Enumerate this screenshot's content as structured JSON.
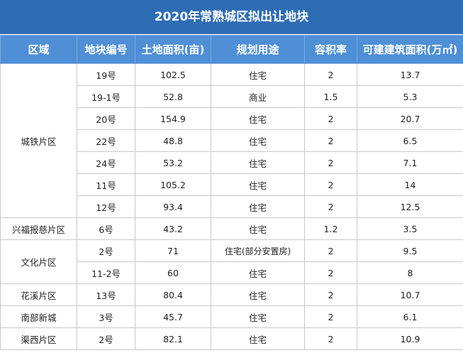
{
  "title": "2020年常熟城区拟出让地块",
  "headers": [
    "区域",
    "地块编号",
    "土地面积(亩)",
    "规划用途",
    "容积率",
    "可建建筑面积(万㎡)"
  ],
  "groups": [
    {
      "district": "城铁片区",
      "rows": [
        {
          "id": "19号",
          "area": "102.5",
          "usage": "住宅",
          "far": "2",
          "gfa": "13.7"
        },
        {
          "id": "19-1号",
          "area": "52.8",
          "usage": "商业",
          "far": "1.5",
          "gfa": "5.3"
        },
        {
          "id": "20号",
          "area": "154.9",
          "usage": "住宅",
          "far": "2",
          "gfa": "20.7"
        },
        {
          "id": "22号",
          "area": "48.8",
          "usage": "住宅",
          "far": "2",
          "gfa": "6.5"
        },
        {
          "id": "24号",
          "area": "53.2",
          "usage": "住宅",
          "far": "2",
          "gfa": "7.1"
        },
        {
          "id": "11号",
          "area": "105.2",
          "usage": "住宅",
          "far": "2",
          "gfa": "14"
        },
        {
          "id": "12号",
          "area": "93.4",
          "usage": "住宅",
          "far": "2",
          "gfa": "12.5"
        }
      ]
    },
    {
      "district": "兴福报慈片区",
      "rows": [
        {
          "id": "6号",
          "area": "43.2",
          "usage": "住宅",
          "far": "1.2",
          "gfa": "3.5"
        }
      ]
    },
    {
      "district": "文化片区",
      "rows": [
        {
          "id": "2号",
          "area": "71",
          "usage": "住宅(部分安置房)",
          "far": "2",
          "gfa": "9.5"
        },
        {
          "id": "11-2号",
          "area": "60",
          "usage": "住宅",
          "far": "2",
          "gfa": "8"
        }
      ]
    },
    {
      "district": "花溪片区",
      "rows": [
        {
          "id": "13号",
          "area": "80.4",
          "usage": "住宅",
          "far": "2",
          "gfa": "10.7"
        }
      ]
    },
    {
      "district": "南部新城",
      "rows": [
        {
          "id": "3号",
          "area": "45.7",
          "usage": "住宅",
          "far": "2",
          "gfa": "6.1"
        }
      ]
    },
    {
      "district": "渠西片区",
      "rows": [
        {
          "id": "2号",
          "area": "82.1",
          "usage": "住宅",
          "far": "2",
          "gfa": "10.9"
        }
      ]
    }
  ]
}
